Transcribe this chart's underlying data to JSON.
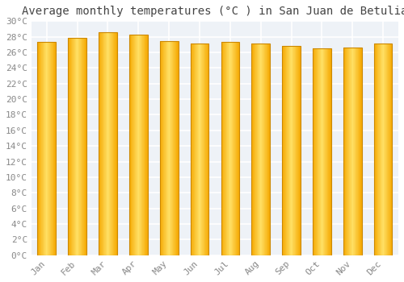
{
  "title": "Average monthly temperatures (°C ) in San Juan de Betulia",
  "months": [
    "Jan",
    "Feb",
    "Mar",
    "Apr",
    "May",
    "Jun",
    "Jul",
    "Aug",
    "Sep",
    "Oct",
    "Nov",
    "Dec"
  ],
  "values": [
    27.3,
    27.9,
    28.6,
    28.3,
    27.4,
    27.1,
    27.3,
    27.1,
    26.8,
    26.5,
    26.6,
    27.1
  ],
  "bar_color_center": "#FFE066",
  "bar_color_edge": "#F5A800",
  "bar_edge_color": "#CC8800",
  "background_color": "#ffffff",
  "plot_bg_color": "#eef2f7",
  "ylim": [
    0,
    30
  ],
  "ytick_step": 2,
  "title_fontsize": 10,
  "tick_fontsize": 8,
  "grid_color": "#ffffff",
  "font_family": "monospace",
  "bar_width": 0.6
}
